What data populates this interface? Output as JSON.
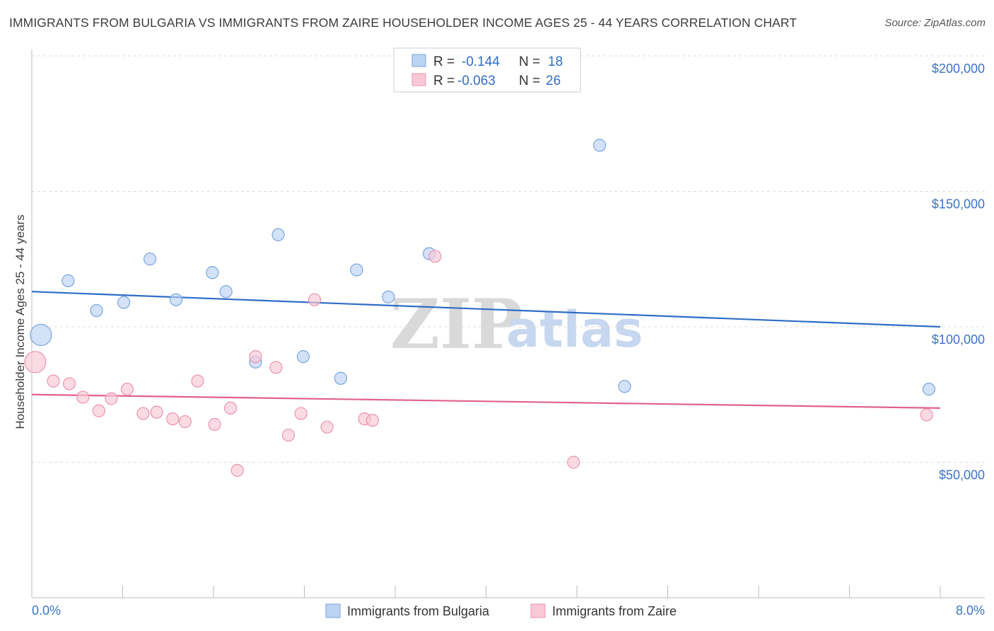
{
  "title": "IMMIGRANTS FROM BULGARIA VS IMMIGRANTS FROM ZAIRE HOUSEHOLDER INCOME AGES 25 - 44 YEARS CORRELATION CHART",
  "source": "Source: ZipAtlas.com",
  "watermark": {
    "zip": "ZIP",
    "atlas": "atlas"
  },
  "colors": {
    "bulgaria_fill": "#bcd3f2",
    "bulgaria_stroke": "#7aa5df",
    "bulgaria_line": "#2f6dc6",
    "zaire_fill": "#f8c8d6",
    "zaire_stroke": "#eb93ae",
    "zaire_line": "#e0628c",
    "axis_text": "#3b74c8",
    "grid": "#dddddd"
  },
  "legend": {
    "rows": [
      {
        "r_label": "R =",
        "r_value": "-0.144",
        "n_label": "N =",
        "n_value": "18"
      },
      {
        "r_label": "R =",
        "r_value": "-0.063",
        "n_label": "N =",
        "n_value": "26"
      }
    ]
  },
  "chart_data": {
    "type": "scatter",
    "title": "IMMIGRANTS FROM BULGARIA VS IMMIGRANTS FROM ZAIRE HOUSEHOLDER INCOME AGES 25 - 44 YEARS CORRELATION CHART",
    "xlabel": "",
    "ylabel": "Householder Income Ages 25 - 44 years",
    "xlim": [
      0,
      8
    ],
    "ylim": [
      0,
      205000
    ],
    "x_tick_labels": [
      "0.0%",
      "8.0%"
    ],
    "y_ticks": [
      50000,
      100000,
      150000,
      200000
    ],
    "y_tick_labels": [
      "$50,000",
      "$100,000",
      "$150,000",
      "$200,000"
    ],
    "grid": true,
    "series": [
      {
        "name": "Immigrants from Bulgaria",
        "r": -0.144,
        "n": 18,
        "trend": {
          "x": [
            0,
            8
          ],
          "y": [
            113000,
            100000
          ]
        },
        "points": [
          {
            "x": 0.08,
            "y": 97000,
            "big": true
          },
          {
            "x": 0.32,
            "y": 117000
          },
          {
            "x": 0.57,
            "y": 106000
          },
          {
            "x": 0.81,
            "y": 109000
          },
          {
            "x": 1.04,
            "y": 125000
          },
          {
            "x": 1.27,
            "y": 110000
          },
          {
            "x": 1.59,
            "y": 120000
          },
          {
            "x": 1.71,
            "y": 113000
          },
          {
            "x": 1.97,
            "y": 87000
          },
          {
            "x": 2.17,
            "y": 134000
          },
          {
            "x": 2.39,
            "y": 89000
          },
          {
            "x": 2.72,
            "y": 81000
          },
          {
            "x": 2.86,
            "y": 121000
          },
          {
            "x": 3.14,
            "y": 111000
          },
          {
            "x": 3.5,
            "y": 127000
          },
          {
            "x": 5.0,
            "y": 167000
          },
          {
            "x": 5.22,
            "y": 78000
          },
          {
            "x": 7.9,
            "y": 77000
          }
        ]
      },
      {
        "name": "Immigrants from Zaire",
        "r": -0.063,
        "n": 26,
        "trend": {
          "x": [
            0,
            8
          ],
          "y": [
            75000,
            70000
          ]
        },
        "points": [
          {
            "x": 0.03,
            "y": 87000,
            "big": true
          },
          {
            "x": 0.19,
            "y": 80000
          },
          {
            "x": 0.33,
            "y": 79000
          },
          {
            "x": 0.45,
            "y": 74000
          },
          {
            "x": 0.59,
            "y": 69000
          },
          {
            "x": 0.7,
            "y": 73500
          },
          {
            "x": 0.84,
            "y": 77000
          },
          {
            "x": 0.98,
            "y": 68000
          },
          {
            "x": 1.1,
            "y": 68500
          },
          {
            "x": 1.24,
            "y": 66000
          },
          {
            "x": 1.35,
            "y": 65000
          },
          {
            "x": 1.46,
            "y": 80000
          },
          {
            "x": 1.61,
            "y": 64000
          },
          {
            "x": 1.75,
            "y": 70000
          },
          {
            "x": 1.81,
            "y": 47000
          },
          {
            "x": 1.97,
            "y": 89000
          },
          {
            "x": 2.15,
            "y": 85000
          },
          {
            "x": 2.26,
            "y": 60000
          },
          {
            "x": 2.37,
            "y": 68000
          },
          {
            "x": 2.49,
            "y": 110000
          },
          {
            "x": 2.6,
            "y": 63000
          },
          {
            "x": 2.93,
            "y": 66000
          },
          {
            "x": 3.0,
            "y": 65500
          },
          {
            "x": 3.55,
            "y": 126000
          },
          {
            "x": 4.77,
            "y": 50000
          },
          {
            "x": 7.88,
            "y": 67500
          }
        ]
      }
    ]
  }
}
